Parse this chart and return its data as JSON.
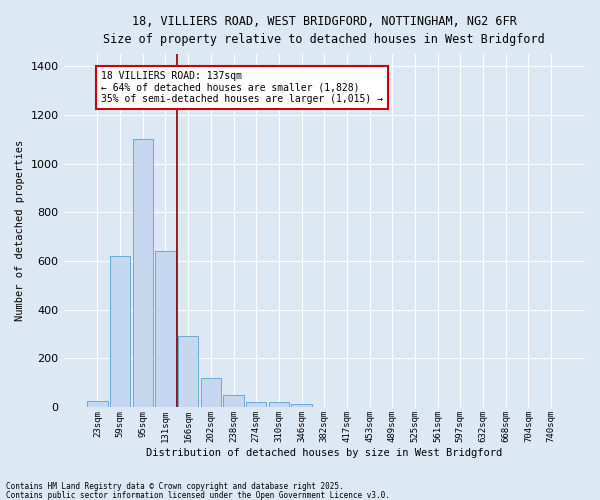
{
  "title_line1": "18, VILLIERS ROAD, WEST BRIDGFORD, NOTTINGHAM, NG2 6FR",
  "title_line2": "Size of property relative to detached houses in West Bridgford",
  "xlabel": "Distribution of detached houses by size in West Bridgford",
  "ylabel": "Number of detached properties",
  "categories": [
    "23sqm",
    "59sqm",
    "95sqm",
    "131sqm",
    "166sqm",
    "202sqm",
    "238sqm",
    "274sqm",
    "310sqm",
    "346sqm",
    "382sqm",
    "417sqm",
    "453sqm",
    "489sqm",
    "525sqm",
    "561sqm",
    "597sqm",
    "632sqm",
    "668sqm",
    "704sqm",
    "740sqm"
  ],
  "values": [
    25,
    620,
    1100,
    640,
    290,
    120,
    48,
    20,
    20,
    12,
    0,
    0,
    0,
    0,
    0,
    0,
    0,
    0,
    0,
    0,
    0
  ],
  "bar_color": "#c5d8f0",
  "bar_edge_color": "#6aaad4",
  "bg_color": "#dde8f5",
  "grid_color": "#ffffff",
  "vline_x_idx": 3,
  "vline_color": "#8b0000",
  "annotation_text": "18 VILLIERS ROAD: 137sqm\n← 64% of detached houses are smaller (1,828)\n35% of semi-detached houses are larger (1,015) →",
  "annotation_box_color": "white",
  "annotation_box_edge": "#cc0000",
  "ylim": [
    0,
    1450
  ],
  "yticks": [
    0,
    200,
    400,
    600,
    800,
    1000,
    1200,
    1400
  ],
  "footnote1": "Contains HM Land Registry data © Crown copyright and database right 2025.",
  "footnote2": "Contains public sector information licensed under the Open Government Licence v3.0."
}
